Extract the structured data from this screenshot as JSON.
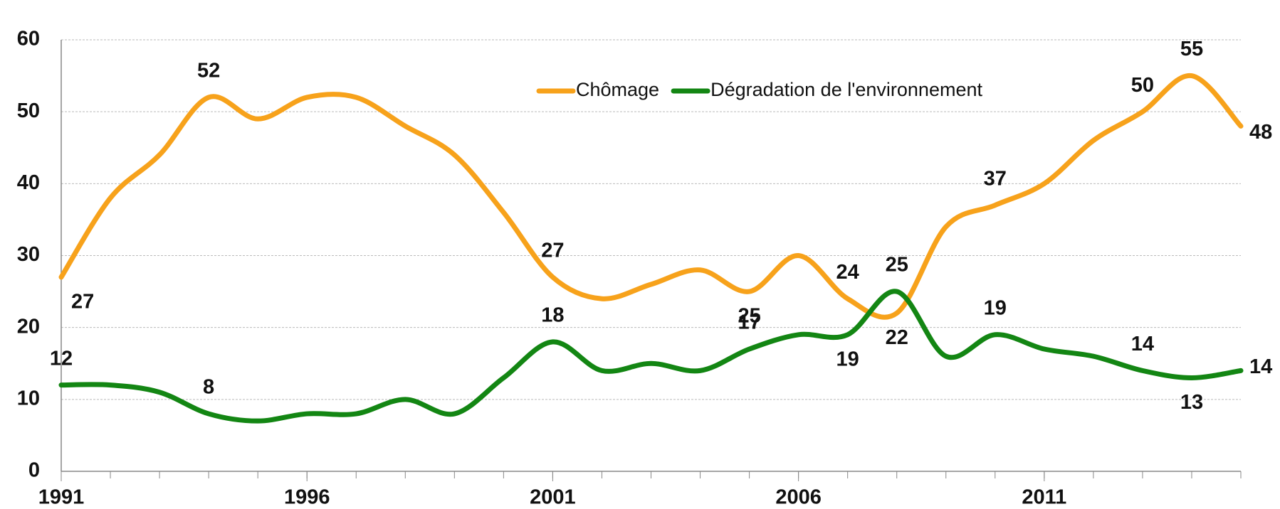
{
  "chart_data": {
    "type": "line",
    "x": [
      1991,
      1992,
      1993,
      1994,
      1995,
      1996,
      1997,
      1998,
      1999,
      2000,
      2001,
      2002,
      2003,
      2004,
      2005,
      2006,
      2007,
      2008,
      2009,
      2010,
      2011,
      2012,
      2013,
      2014,
      2015
    ],
    "series": [
      {
        "name": "Chômage",
        "color": "#f7a21b",
        "values": [
          27,
          38,
          44,
          52,
          49,
          52,
          52,
          48,
          44,
          36,
          27,
          24,
          26,
          28,
          25,
          30,
          24,
          22,
          34,
          37,
          40,
          46,
          50,
          55,
          48
        ],
        "value_labels": [
          "27",
          null,
          null,
          "52",
          null,
          null,
          null,
          null,
          null,
          null,
          "27",
          null,
          null,
          null,
          "25",
          null,
          "24",
          "22",
          null,
          "37",
          null,
          null,
          "50",
          "55",
          "48"
        ]
      },
      {
        "name": "Dégradation de l'environnement",
        "color": "#138613",
        "values": [
          12,
          12,
          11,
          8,
          7,
          8,
          8,
          10,
          8,
          13,
          18,
          14,
          15,
          14,
          17,
          19,
          19,
          25,
          16,
          19,
          17,
          16,
          14,
          13,
          14
        ],
        "value_labels": [
          "12",
          null,
          null,
          "8",
          null,
          null,
          null,
          null,
          null,
          null,
          "18",
          null,
          null,
          null,
          "17",
          null,
          "19",
          "25",
          null,
          "19",
          null,
          null,
          "14",
          "13",
          "14"
        ]
      }
    ],
    "xlim": [
      1991,
      2015
    ],
    "xticks": [
      1991,
      1996,
      2001,
      2006,
      2011
    ],
    "ylim": [
      0,
      60
    ],
    "yticks": [
      0,
      10,
      20,
      30,
      40,
      50,
      60
    ],
    "grid": true,
    "legend": "top"
  }
}
